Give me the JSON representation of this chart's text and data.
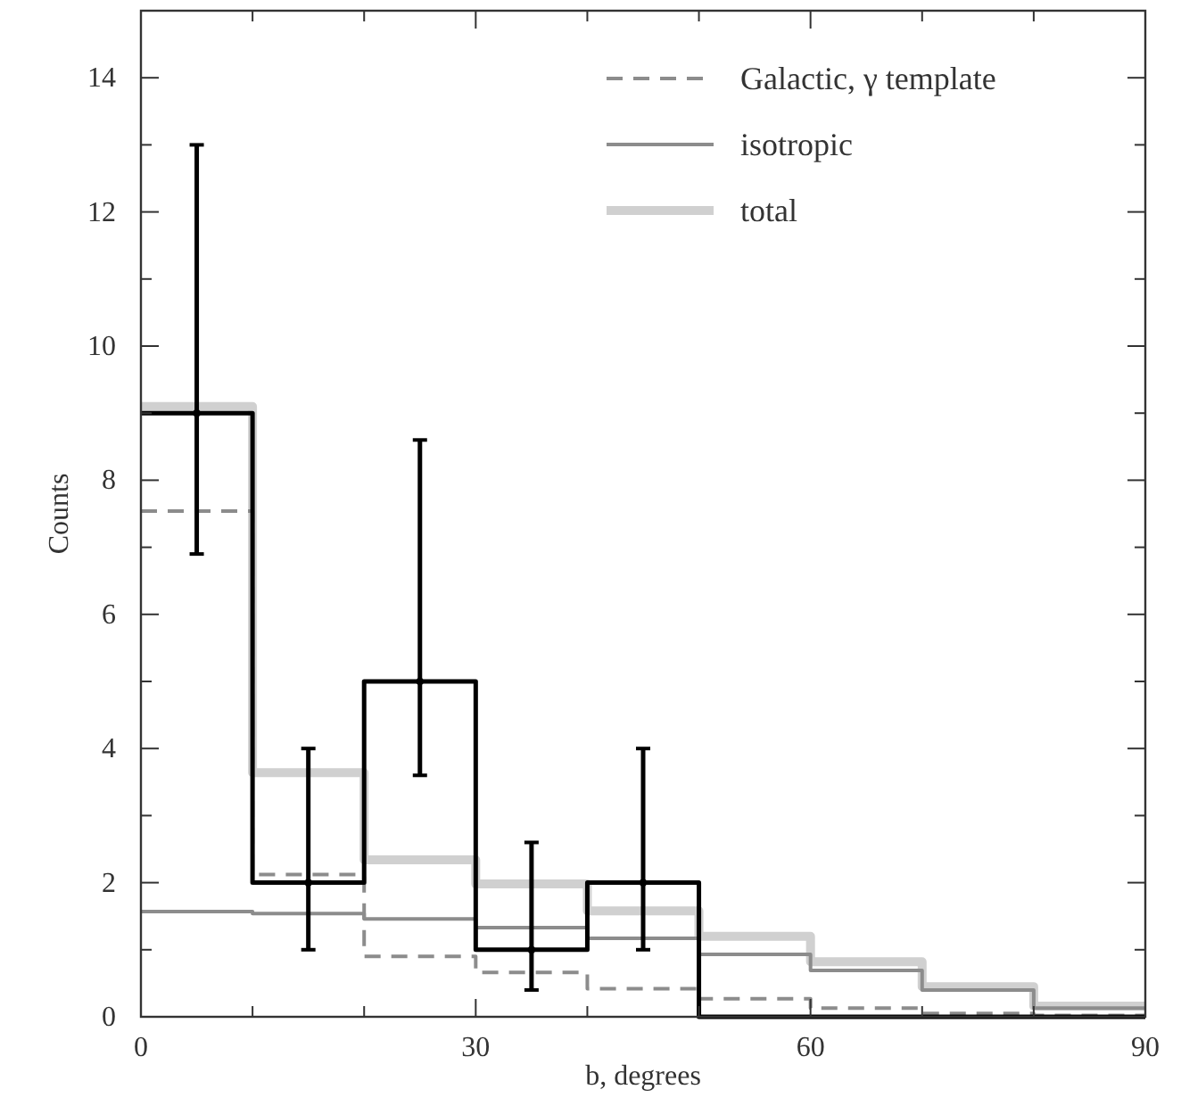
{
  "chart_data": {
    "type": "histogram",
    "xlabel": "b, degrees",
    "ylabel": "Counts",
    "bins": [
      0,
      10,
      20,
      30,
      40,
      50,
      60,
      70,
      80,
      90
    ],
    "series": [
      {
        "name": "total",
        "color": "#d0d0d0",
        "line_style": "solid",
        "values": [
          9.1,
          3.64,
          2.34,
          1.98,
          1.58,
          1.2,
          0.82,
          0.45,
          0.16
        ]
      },
      {
        "name": "Galactic, γ template",
        "color": "#8c8c8c",
        "line_style": "dashed",
        "values": [
          7.54,
          2.12,
          0.9,
          0.66,
          0.42,
          0.27,
          0.13,
          0.05,
          0.02
        ]
      },
      {
        "name": "isotropic",
        "color": "#8c8c8c",
        "line_style": "solid",
        "values": [
          1.57,
          1.54,
          1.46,
          1.33,
          1.17,
          0.93,
          0.69,
          0.4,
          0.13
        ]
      },
      {
        "color": "#000000",
        "line_style": "solid",
        "values": [
          9,
          2,
          5,
          1,
          2,
          0,
          0,
          0,
          0
        ]
      },
      {
        "type": "scatter",
        "marker": "circle",
        "color": "#000000",
        "x": [
          5,
          15,
          25,
          35,
          45
        ],
        "values": [
          9,
          2,
          5,
          1,
          2
        ],
        "errors": [
          [
            6.9,
            13
          ],
          [
            1,
            4
          ],
          [
            3.6,
            8.6
          ],
          [
            0.4,
            2.6
          ],
          [
            1,
            4
          ]
        ]
      }
    ],
    "xlim": [
      0,
      90
    ],
    "ylim": [
      0,
      15
    ],
    "xticks": [
      0,
      {
        "value": 10,
        "label": null
      },
      {
        "value": 20,
        "label": null
      },
      30,
      {
        "value": 40,
        "label": null
      },
      {
        "value": 50,
        "label": null
      },
      60,
      {
        "value": 70,
        "label": null
      },
      {
        "value": 80,
        "label": null
      },
      90
    ],
    "yticks": [
      0,
      {
        "value": 1,
        "label": null
      },
      2,
      {
        "value": 3,
        "label": null
      },
      4,
      {
        "value": 5,
        "label": null
      },
      6,
      {
        "value": 7,
        "label": null
      },
      8,
      {
        "value": 9,
        "label": null
      },
      10,
      {
        "value": 11,
        "label": null
      },
      12,
      {
        "value": 13,
        "label": null
      },
      14
    ],
    "grid": false,
    "legend": "top right"
  }
}
